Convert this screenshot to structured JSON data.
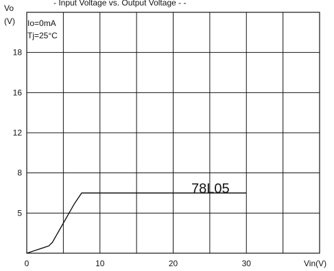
{
  "chart_data": {
    "type": "line",
    "title": "",
    "top_text": "- Input Voltage vs. Output Voltage - -",
    "ylabel_line1": "Vo",
    "ylabel_line2": "(V)",
    "xlabel": "Vin(V)",
    "annotations": [
      "Io=0mA",
      "Tj=25°C"
    ],
    "series": [
      {
        "name": "78L05",
        "x": [
          0,
          1,
          2,
          3,
          3.5,
          5,
          6.5,
          7.5,
          30
        ],
        "y": [
          0,
          0.2,
          0.4,
          0.6,
          0.9,
          2.5,
          4.1,
          5.0,
          5.0
        ]
      }
    ],
    "x_ticks": [
      {
        "label": "0",
        "value": 0
      },
      {
        "label": "10",
        "value": 10
      },
      {
        "label": "20",
        "value": 20
      },
      {
        "label": "30",
        "value": 30
      }
    ],
    "y_ticks": [
      {
        "label": "5",
        "value": 5
      },
      {
        "label": "8",
        "value": 8
      },
      {
        "label": "12",
        "value": 12
      },
      {
        "label": "16",
        "value": 16
      },
      {
        "label": "18",
        "value": 18
      }
    ],
    "xlim": [
      0,
      40
    ],
    "ylim": [
      0,
      20
    ],
    "grid": true,
    "colors": {
      "line": "#111111",
      "grid": "#111111",
      "background": "#ffffff"
    }
  }
}
